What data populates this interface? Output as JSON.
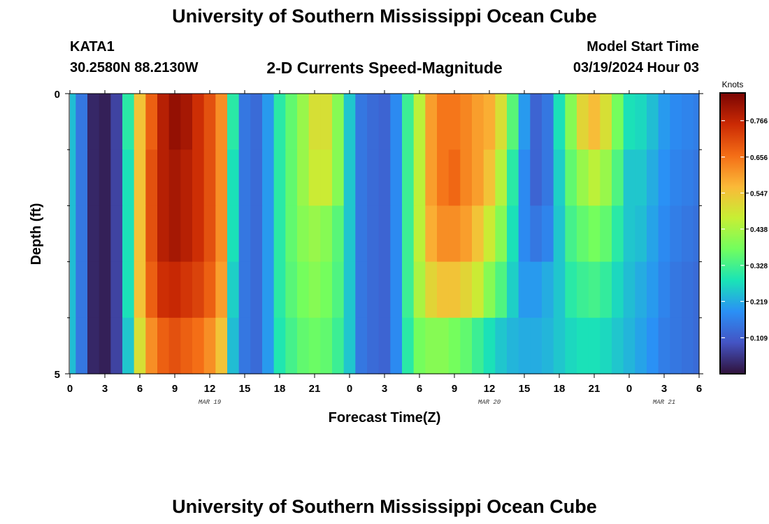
{
  "title": "University of Southern Mississippi Ocean Cube",
  "station": {
    "id": "KATA1",
    "coords": "30.2580N  88.2130W"
  },
  "subtitle": "2-D Currents Speed-Magnitude",
  "model": {
    "label": "Model Start Time",
    "time": "03/19/2024 Hour 03"
  },
  "bottom_title": "University of Southern Mississippi Ocean Cube",
  "colors": {
    "stops": [
      "#30123b",
      "#4454c4",
      "#2a90f6",
      "#1ae4b6",
      "#72fe5e",
      "#c7ef34",
      "#fbb938",
      "#f46d16",
      "#cb2a04",
      "#7a0403"
    ]
  },
  "chart_data": {
    "type": "heatmap",
    "title": "2-D Currents Speed-Magnitude",
    "xlabel": "Forecast Time(Z)",
    "ylabel": "Depth (ft)",
    "x_ticks": [
      "0",
      "3",
      "6",
      "9",
      "12",
      "15",
      "18",
      "21",
      "0",
      "3",
      "6",
      "9",
      "12",
      "15",
      "18",
      "21",
      "0",
      "3",
      "6"
    ],
    "date_labels": [
      {
        "label": "MAR 19",
        "hour": 12
      },
      {
        "label": "MAR 20",
        "hour": 36
      },
      {
        "label": "MAR 21",
        "hour": 51
      }
    ],
    "y_ticks": [
      "0",
      "5"
    ],
    "ylim": [
      0,
      5
    ],
    "x_range_hours": [
      0,
      54
    ],
    "colorbar": {
      "unit": "Knots",
      "ticks": [
        "0.766",
        "0.656",
        "0.547",
        "0.438",
        "0.328",
        "0.219",
        "0.109"
      ],
      "tick_values": [
        0.766,
        0.656,
        0.547,
        0.438,
        0.328,
        0.219,
        0.109
      ],
      "range": [
        0,
        0.85
      ]
    },
    "depth_rows": 5,
    "hours": [
      0,
      1,
      2,
      3,
      4,
      5,
      6,
      7,
      8,
      9,
      10,
      11,
      12,
      13,
      14,
      15,
      16,
      17,
      18,
      19,
      20,
      21,
      22,
      23,
      24,
      25,
      26,
      27,
      28,
      29,
      30,
      31,
      32,
      33,
      34,
      35,
      36,
      37,
      38,
      39,
      40,
      41,
      42,
      43,
      44,
      45,
      46,
      47,
      48,
      49,
      50,
      51,
      52,
      53,
      54
    ],
    "profiles": [
      [
        0.24,
        0.15,
        0.03,
        0.02,
        0.07,
        0.3,
        0.55,
        0.68,
        0.78,
        0.82,
        0.8,
        0.75,
        0.7,
        0.62,
        0.3,
        0.15,
        0.13,
        0.2,
        0.3,
        0.36,
        0.42,
        0.5,
        0.5,
        0.4,
        0.25,
        0.15,
        0.13,
        0.12,
        0.18,
        0.32,
        0.46,
        0.6,
        0.65,
        0.65,
        0.63,
        0.6,
        0.58,
        0.5,
        0.35,
        0.2,
        0.12,
        0.15,
        0.28,
        0.4,
        0.52,
        0.56,
        0.5,
        0.38,
        0.28,
        0.27,
        0.24,
        0.2,
        0.18,
        0.17,
        0.16
      ],
      [
        0.24,
        0.15,
        0.03,
        0.02,
        0.07,
        0.28,
        0.55,
        0.7,
        0.78,
        0.8,
        0.78,
        0.75,
        0.7,
        0.62,
        0.28,
        0.15,
        0.13,
        0.2,
        0.3,
        0.36,
        0.42,
        0.48,
        0.48,
        0.4,
        0.25,
        0.15,
        0.13,
        0.12,
        0.18,
        0.32,
        0.46,
        0.6,
        0.65,
        0.67,
        0.63,
        0.6,
        0.55,
        0.45,
        0.3,
        0.18,
        0.12,
        0.15,
        0.26,
        0.36,
        0.42,
        0.46,
        0.42,
        0.34,
        0.25,
        0.25,
        0.22,
        0.19,
        0.17,
        0.16,
        0.15
      ],
      [
        0.24,
        0.15,
        0.03,
        0.02,
        0.07,
        0.28,
        0.55,
        0.7,
        0.78,
        0.8,
        0.78,
        0.75,
        0.7,
        0.62,
        0.28,
        0.15,
        0.13,
        0.2,
        0.3,
        0.36,
        0.4,
        0.42,
        0.4,
        0.35,
        0.25,
        0.15,
        0.13,
        0.12,
        0.18,
        0.32,
        0.46,
        0.58,
        0.62,
        0.62,
        0.6,
        0.55,
        0.48,
        0.4,
        0.28,
        0.18,
        0.15,
        0.17,
        0.25,
        0.33,
        0.36,
        0.38,
        0.36,
        0.3,
        0.25,
        0.24,
        0.21,
        0.18,
        0.16,
        0.15,
        0.14
      ],
      [
        0.24,
        0.15,
        0.03,
        0.02,
        0.07,
        0.28,
        0.55,
        0.68,
        0.75,
        0.76,
        0.74,
        0.72,
        0.68,
        0.6,
        0.26,
        0.15,
        0.13,
        0.2,
        0.3,
        0.35,
        0.38,
        0.4,
        0.38,
        0.34,
        0.25,
        0.15,
        0.13,
        0.12,
        0.18,
        0.32,
        0.44,
        0.52,
        0.55,
        0.55,
        0.52,
        0.48,
        0.4,
        0.34,
        0.26,
        0.2,
        0.2,
        0.22,
        0.25,
        0.3,
        0.32,
        0.33,
        0.31,
        0.27,
        0.24,
        0.22,
        0.2,
        0.17,
        0.15,
        0.14,
        0.13
      ],
      [
        0.24,
        0.15,
        0.03,
        0.02,
        0.07,
        0.25,
        0.5,
        0.62,
        0.68,
        0.7,
        0.68,
        0.66,
        0.62,
        0.55,
        0.24,
        0.15,
        0.13,
        0.2,
        0.29,
        0.33,
        0.36,
        0.37,
        0.36,
        0.32,
        0.25,
        0.15,
        0.13,
        0.12,
        0.18,
        0.3,
        0.38,
        0.4,
        0.4,
        0.38,
        0.36,
        0.32,
        0.28,
        0.25,
        0.23,
        0.22,
        0.22,
        0.23,
        0.25,
        0.27,
        0.28,
        0.28,
        0.27,
        0.25,
        0.23,
        0.21,
        0.19,
        0.16,
        0.15,
        0.14,
        0.13
      ]
    ]
  }
}
